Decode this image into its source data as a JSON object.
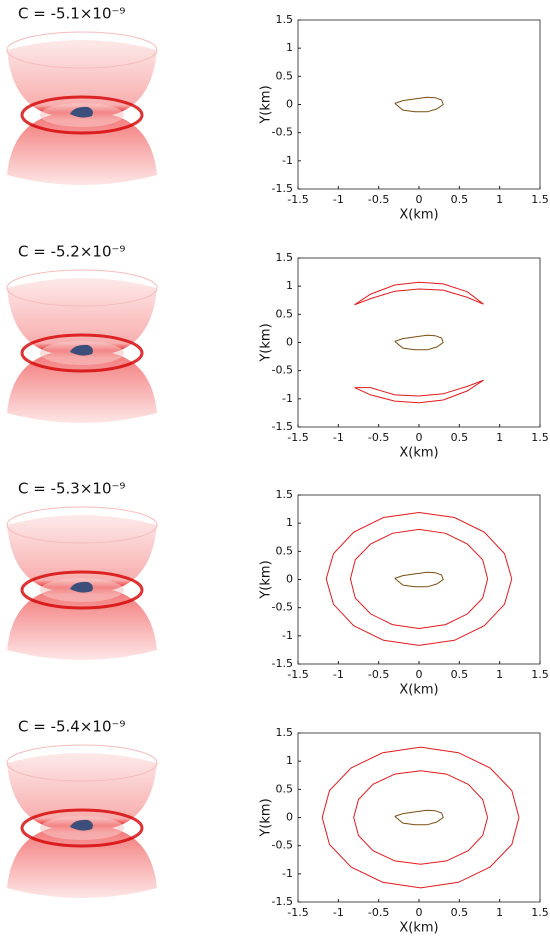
{
  "chart_data": [
    {
      "type": "line",
      "title": "C = -5.1×10⁻⁹",
      "xlabel": "X(km)",
      "ylabel": "Y(km)",
      "xlim": [
        -1.5,
        1.5
      ],
      "ylim": [
        -1.5,
        1.5
      ],
      "xticks": [
        -1.5,
        -1,
        -0.5,
        0,
        0.5,
        1,
        1.5
      ],
      "yticks": [
        -1.5,
        -1,
        -0.5,
        0,
        0.5,
        1,
        1.5
      ],
      "grid": false,
      "series": [
        {
          "color": "#7a4f12",
          "x": [
            -0.3,
            -0.2,
            -0.05,
            0.1,
            0.2,
            0.28,
            0.3,
            0.22,
            0.1,
            -0.05,
            -0.2,
            -0.3
          ],
          "y": [
            0.02,
            0.07,
            0.1,
            0.13,
            0.12,
            0.08,
            0,
            -0.08,
            -0.13,
            -0.13,
            -0.1,
            0.02
          ]
        }
      ]
    },
    {
      "type": "line",
      "title": "C = -5.2×10⁻⁹",
      "xlabel": "X(km)",
      "ylabel": "Y(km)",
      "xlim": [
        -1.5,
        1.5
      ],
      "ylim": [
        -1.5,
        1.5
      ],
      "xticks": [
        -1.5,
        -1,
        -0.5,
        0,
        0.5,
        1,
        1.5
      ],
      "yticks": [
        -1.5,
        -1,
        -0.5,
        0,
        0.5,
        1,
        1.5
      ],
      "grid": false,
      "series": [
        {
          "color": "#e31a1c",
          "x": [
            -0.8,
            -0.6,
            -0.3,
            0,
            0.3,
            0.6,
            0.8,
            0.6,
            0.3,
            0,
            -0.3,
            -0.6,
            -0.8
          ],
          "y": [
            0.67,
            0.86,
            1.02,
            1.07,
            1.04,
            0.9,
            0.68,
            0.8,
            0.93,
            0.95,
            0.91,
            0.78,
            0.67
          ]
        },
        {
          "color": "#e31a1c",
          "x": [
            -0.8,
            -0.6,
            -0.3,
            0,
            0.3,
            0.6,
            0.8,
            0.6,
            0.3,
            0,
            -0.3,
            -0.6,
            -0.8
          ],
          "y": [
            -0.8,
            -0.93,
            -1.04,
            -1.07,
            -1.02,
            -0.86,
            -0.67,
            -0.78,
            -0.91,
            -0.95,
            -0.93,
            -0.8,
            -0.8
          ]
        },
        {
          "color": "#7a4f12",
          "x": [
            -0.3,
            -0.2,
            -0.05,
            0.1,
            0.2,
            0.28,
            0.3,
            0.22,
            0.1,
            -0.05,
            -0.2,
            -0.3
          ],
          "y": [
            0.02,
            0.07,
            0.1,
            0.13,
            0.12,
            0.08,
            0,
            -0.08,
            -0.13,
            -0.13,
            -0.1,
            0.02
          ]
        }
      ]
    },
    {
      "type": "line",
      "title": "C = -5.3×10⁻⁹",
      "xlabel": "X(km)",
      "ylabel": "Y(km)",
      "xlim": [
        -1.5,
        1.5
      ],
      "ylim": [
        -1.5,
        1.5
      ],
      "xticks": [
        -1.5,
        -1,
        -0.5,
        0,
        0.5,
        1,
        1.5
      ],
      "yticks": [
        -1.5,
        -1,
        -0.5,
        0,
        0.5,
        1,
        1.5
      ],
      "grid": false,
      "series": [
        {
          "color": "#e31a1c",
          "x": [
            0.85,
            0.79,
            0.6,
            0.33,
            0,
            -0.33,
            -0.6,
            -0.79,
            -0.85,
            -0.79,
            -0.6,
            -0.33,
            0,
            0.33,
            0.6,
            0.79,
            0.85
          ],
          "y": [
            0.01,
            0.35,
            0.63,
            0.82,
            0.89,
            0.82,
            0.63,
            0.35,
            0.01,
            -0.33,
            -0.61,
            -0.8,
            -0.87,
            -0.8,
            -0.61,
            -0.33,
            0.01
          ]
        },
        {
          "color": "#e31a1c",
          "x": [
            1.15,
            1.06,
            0.81,
            0.44,
            0,
            -0.44,
            -0.81,
            -1.06,
            -1.15,
            -1.06,
            -0.81,
            -0.44,
            0,
            0.44,
            0.81,
            1.06,
            1.15
          ],
          "y": [
            0.01,
            0.46,
            0.84,
            1.1,
            1.19,
            1.1,
            0.84,
            0.46,
            0.01,
            -0.44,
            -0.82,
            -1.08,
            -1.17,
            -1.08,
            -0.82,
            -0.44,
            0.01
          ]
        },
        {
          "color": "#7a4f12",
          "x": [
            -0.3,
            -0.2,
            -0.05,
            0.1,
            0.2,
            0.28,
            0.3,
            0.22,
            0.1,
            -0.05,
            -0.2,
            -0.3
          ],
          "y": [
            0.02,
            0.07,
            0.1,
            0.13,
            0.12,
            0.08,
            0,
            -0.08,
            -0.13,
            -0.13,
            -0.1,
            0.02
          ]
        }
      ]
    },
    {
      "type": "line",
      "title": "C = -5.4×10⁻⁹",
      "xlabel": "X(km)",
      "ylabel": "Y(km)",
      "xlim": [
        -1.5,
        1.5
      ],
      "ylim": [
        -1.5,
        1.5
      ],
      "xticks": [
        -1.5,
        -1,
        -0.5,
        0,
        0.5,
        1,
        1.5
      ],
      "yticks": [
        -1.5,
        -1,
        -0.5,
        0,
        0.5,
        1,
        1.5
      ],
      "grid": false,
      "series": [
        {
          "color": "#e31a1c",
          "x": [
            0.85,
            0.79,
            0.61,
            0.34,
            0.02,
            -0.3,
            -0.57,
            -0.75,
            -0.81,
            -0.75,
            -0.57,
            -0.3,
            0.02,
            0.34,
            0.61,
            0.79,
            0.85
          ],
          "y": [
            0,
            0.32,
            0.59,
            0.77,
            0.83,
            0.77,
            0.59,
            0.32,
            0,
            -0.32,
            -0.59,
            -0.77,
            -0.83,
            -0.77,
            -0.59,
            -0.32,
            0
          ]
        },
        {
          "color": "#e31a1c",
          "x": [
            1.24,
            1.15,
            0.88,
            0.49,
            0.02,
            -0.45,
            -0.84,
            -1.11,
            -1.2,
            -1.11,
            -0.84,
            -0.45,
            0.02,
            0.49,
            0.88,
            1.15,
            1.24
          ],
          "y": [
            0,
            0.48,
            0.88,
            1.15,
            1.25,
            1.15,
            0.88,
            0.48,
            0,
            -0.48,
            -0.88,
            -1.15,
            -1.25,
            -1.15,
            -0.88,
            -0.48,
            0
          ]
        },
        {
          "color": "#7a4f12",
          "x": [
            -0.3,
            -0.2,
            -0.05,
            0.1,
            0.2,
            0.28,
            0.3,
            0.22,
            0.1,
            -0.05,
            -0.2,
            -0.3
          ],
          "y": [
            0.02,
            0.07,
            0.1,
            0.13,
            0.12,
            0.08,
            0,
            -0.08,
            -0.13,
            -0.13,
            -0.1,
            0.02
          ]
        }
      ]
    }
  ]
}
